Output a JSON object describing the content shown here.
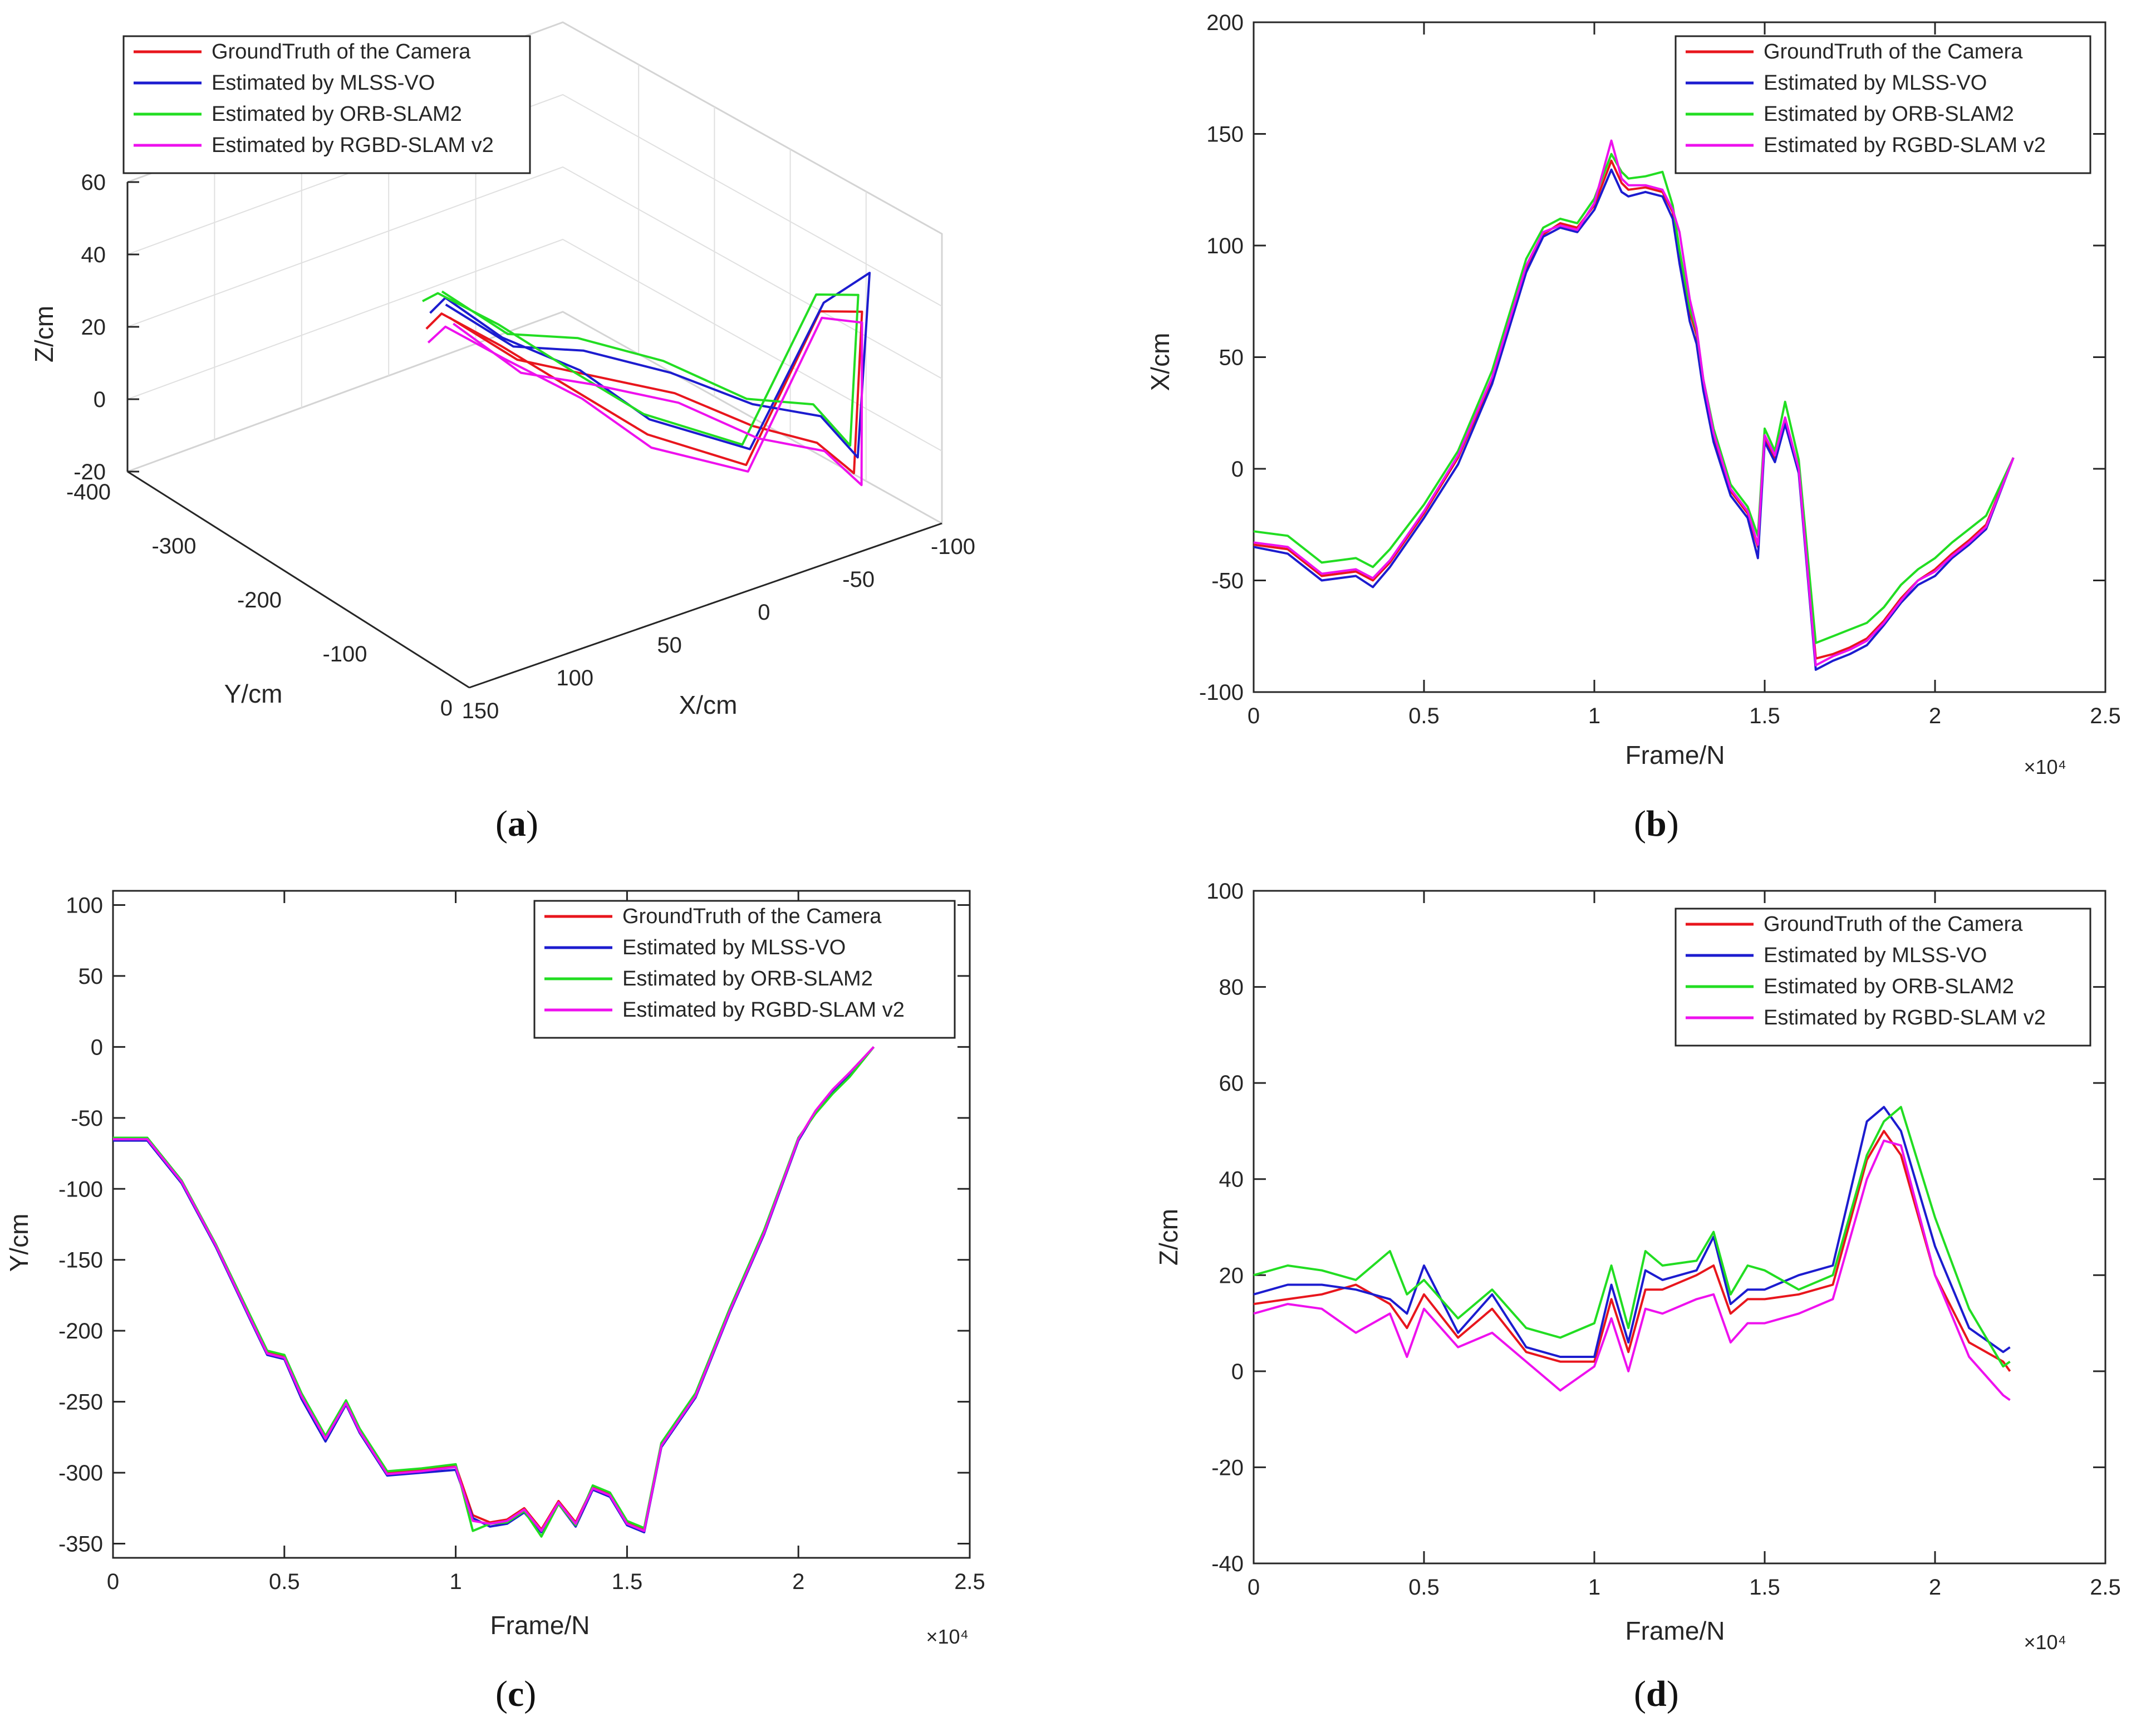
{
  "legend_labels": [
    "GroundTruth of the Camera",
    "Estimated by MLSS-VO",
    "Estimated by ORB-SLAM2",
    "Estimated by RGBD-SLAM v2"
  ],
  "series_colors": {
    "ground_truth": "#e8161d",
    "mlss_vo": "#1c1ccf",
    "orb_slam2": "#22dd22",
    "rgbd_slam_v2": "#ee11ee"
  },
  "captions": {
    "a": "a",
    "b": "b",
    "c": "c",
    "d": "d"
  },
  "chart_data": [
    {
      "panel": "a",
      "type": "line",
      "title": "",
      "projection": "3d",
      "xlabel": "X/cm",
      "ylabel": "Y/cm",
      "zlabel": "Z/cm",
      "xticks": [
        "150",
        "100",
        "50",
        "0",
        "-50",
        "-100"
      ],
      "yticks": [
        "0",
        "-100",
        "-200",
        "-300",
        "-400"
      ],
      "zticks": [
        "60",
        "40",
        "20",
        "0",
        "-20"
      ],
      "xlim": [
        -100,
        150
      ],
      "ylim": [
        -400,
        0
      ],
      "zlim": [
        -20,
        60
      ],
      "legend": {
        "location": "top-left",
        "entries": [
          "GroundTruth of the Camera",
          "Estimated by MLSS-VO",
          "Estimated by ORB-SLAM2",
          "Estimated by RGBD-SLAM v2"
        ]
      },
      "series": [
        {
          "name": "GroundTruth of the Camera",
          "points": [
            [
              0,
              -355,
              2
            ],
            [
              -20,
              -320,
              -8
            ],
            [
              -30,
              -260,
              -5
            ],
            [
              -40,
              -180,
              0
            ],
            [
              -45,
              -100,
              2
            ],
            [
              -52,
              -40,
              5
            ],
            [
              -58,
              -10,
              0
            ],
            [
              -60,
              -5,
              45
            ],
            [
              -40,
              -10,
              48
            ],
            [
              -10,
              -30,
              8
            ],
            [
              15,
              -90,
              12
            ],
            [
              20,
              -160,
              14
            ],
            [
              25,
              -240,
              16
            ],
            [
              20,
              -320,
              12
            ],
            [
              10,
              -360,
              0
            ]
          ]
        },
        {
          "name": "Estimated by MLSS-VO",
          "points": [
            [
              2,
              -355,
              6
            ],
            [
              -18,
              -320,
              -4
            ],
            [
              -28,
              -260,
              2
            ],
            [
              -38,
              -180,
              6
            ],
            [
              -45,
              -100,
              8
            ],
            [
              -54,
              -40,
              12
            ],
            [
              -60,
              -10,
              4
            ],
            [
              -64,
              -5,
              55
            ],
            [
              -42,
              -10,
              50
            ],
            [
              -12,
              -30,
              12
            ],
            [
              14,
              -90,
              16
            ],
            [
              19,
              -160,
              20
            ],
            [
              24,
              -240,
              18
            ],
            [
              18,
              -320,
              16
            ],
            [
              8,
              -360,
              4
            ]
          ]
        },
        {
          "name": "Estimated by ORB-SLAM2",
          "points": [
            [
              4,
              -355,
              10
            ],
            [
              -15,
              -320,
              0
            ],
            [
              -25,
              -260,
              6
            ],
            [
              -34,
              -180,
              10
            ],
            [
              -42,
              -100,
              10
            ],
            [
              -50,
              -40,
              16
            ],
            [
              -56,
              -10,
              8
            ],
            [
              -58,
              -5,
              50
            ],
            [
              -38,
              -10,
              53
            ],
            [
              -8,
              -30,
              14
            ],
            [
              17,
              -90,
              18
            ],
            [
              22,
              -160,
              20
            ],
            [
              26,
              -240,
              22
            ],
            [
              22,
              -320,
              18
            ],
            [
              12,
              -360,
              8
            ]
          ]
        },
        {
          "name": "Estimated by RGBD-SLAM v2",
          "points": [
            [
              -2,
              -355,
              0
            ],
            [
              -22,
              -320,
              -12
            ],
            [
              -32,
              -260,
              -8
            ],
            [
              -42,
              -180,
              -3
            ],
            [
              -48,
              -100,
              -2
            ],
            [
              -56,
              -40,
              2
            ],
            [
              -62,
              -10,
              -4
            ],
            [
              -60,
              -5,
              42
            ],
            [
              -41,
              -10,
              46
            ],
            [
              -11,
              -30,
              6
            ],
            [
              13,
              -90,
              8
            ],
            [
              18,
              -160,
              12
            ],
            [
              23,
              -240,
              12
            ],
            [
              18,
              -320,
              8
            ],
            [
              9,
              -360,
              -4
            ]
          ]
        }
      ]
    },
    {
      "panel": "b",
      "type": "line",
      "title": "",
      "xlabel": "Frame/N",
      "ylabel": "X/cm",
      "x_exponent_label": "×10⁴",
      "xlim": [
        0,
        2.5
      ],
      "ylim": [
        -100,
        200
      ],
      "xticks": [
        "0",
        "0.5",
        "1",
        "1.5",
        "2",
        "2.5"
      ],
      "yticks": [
        "-100",
        "-50",
        "0",
        "50",
        "100",
        "150",
        "200"
      ],
      "legend": {
        "location": "top-right",
        "entries": [
          "GroundTruth of the Camera",
          "Estimated by MLSS-VO",
          "Estimated by ORB-SLAM2",
          "Estimated by RGBD-SLAM v2"
        ]
      },
      "x": [
        0,
        0.1,
        0.2,
        0.3,
        0.35,
        0.4,
        0.5,
        0.6,
        0.7,
        0.8,
        0.85,
        0.9,
        0.95,
        1.0,
        1.05,
        1.08,
        1.1,
        1.15,
        1.2,
        1.23,
        1.25,
        1.28,
        1.3,
        1.32,
        1.35,
        1.4,
        1.45,
        1.48,
        1.5,
        1.53,
        1.56,
        1.6,
        1.65,
        1.7,
        1.75,
        1.8,
        1.85,
        1.9,
        1.95,
        2.0,
        2.05,
        2.1,
        2.15,
        2.23
      ],
      "series": [
        {
          "name": "GroundTruth of the Camera",
          "values": [
            -34,
            -36,
            -48,
            -46,
            -50,
            -42,
            -20,
            5,
            40,
            90,
            105,
            110,
            108,
            118,
            138,
            128,
            125,
            126,
            124,
            115,
            95,
            70,
            60,
            38,
            15,
            -10,
            -20,
            -35,
            14,
            5,
            22,
            0,
            -85,
            -83,
            -80,
            -76,
            -68,
            -58,
            -50,
            -45,
            -38,
            -32,
            -25,
            5
          ]
        },
        {
          "name": "Estimated by MLSS-VO",
          "values": [
            -35,
            -38,
            -50,
            -48,
            -53,
            -44,
            -22,
            2,
            38,
            88,
            104,
            108,
            106,
            116,
            134,
            124,
            122,
            124,
            122,
            112,
            92,
            66,
            56,
            35,
            12,
            -12,
            -22,
            -40,
            12,
            3,
            20,
            -2,
            -90,
            -86,
            -83,
            -79,
            -70,
            -60,
            -52,
            -48,
            -40,
            -34,
            -27,
            5
          ]
        },
        {
          "name": "Estimated by ORB-SLAM2",
          "values": [
            -28,
            -30,
            -42,
            -40,
            -44,
            -36,
            -16,
            8,
            44,
            94,
            108,
            112,
            110,
            121,
            141,
            133,
            130,
            131,
            133,
            118,
            98,
            72,
            62,
            40,
            18,
            -7,
            -17,
            -30,
            18,
            8,
            30,
            4,
            -78,
            -75,
            -72,
            -69,
            -62,
            -52,
            -45,
            -40,
            -33,
            -27,
            -21,
            5
          ]
        },
        {
          "name": "Estimated by RGBD-SLAM v2",
          "values": [
            -33,
            -35,
            -47,
            -45,
            -49,
            -41,
            -19,
            6,
            41,
            91,
            106,
            109,
            107,
            119,
            147,
            130,
            127,
            127,
            125,
            116,
            106,
            76,
            63,
            40,
            16,
            -9,
            -19,
            -34,
            15,
            6,
            23,
            0,
            -88,
            -84,
            -81,
            -77,
            -69,
            -59,
            -50,
            -46,
            -39,
            -33,
            -26,
            5
          ]
        }
      ]
    },
    {
      "panel": "c",
      "type": "line",
      "title": "",
      "xlabel": "Frame/N",
      "ylabel": "Y/cm",
      "x_exponent_label": "×10⁴",
      "xlim": [
        0,
        2.5
      ],
      "ylim": [
        -360,
        110
      ],
      "xticks": [
        "0",
        "0.5",
        "1",
        "1.5",
        "2",
        "2.5"
      ],
      "yticks": [
        "-350",
        "-300",
        "-250",
        "-200",
        "-150",
        "-100",
        "-50",
        "0",
        "50",
        "100"
      ],
      "legend": {
        "location": "top-right",
        "entries": [
          "GroundTruth of the Camera",
          "Estimated by MLSS-VO",
          "Estimated by ORB-SLAM2",
          "Estimated by RGBD-SLAM v2"
        ]
      },
      "x": [
        0,
        0.1,
        0.2,
        0.3,
        0.4,
        0.45,
        0.5,
        0.55,
        0.62,
        0.68,
        0.72,
        0.8,
        0.9,
        1.0,
        1.05,
        1.1,
        1.15,
        1.2,
        1.25,
        1.3,
        1.35,
        1.4,
        1.45,
        1.5,
        1.55,
        1.6,
        1.7,
        1.8,
        1.9,
        2.0,
        2.05,
        2.1,
        2.15,
        2.22
      ],
      "series": [
        {
          "name": "GroundTruth of the Camera",
          "values": [
            -65,
            -65,
            -95,
            -140,
            -190,
            -215,
            -218,
            -245,
            -275,
            -250,
            -270,
            -300,
            -298,
            -295,
            -330,
            -335,
            -333,
            -325,
            -340,
            -320,
            -335,
            -310,
            -315,
            -335,
            -340,
            -280,
            -245,
            -185,
            -130,
            -65,
            -45,
            -30,
            -18,
            0
          ]
        },
        {
          "name": "Estimated by MLSS-VO",
          "values": [
            -66,
            -66,
            -96,
            -141,
            -192,
            -217,
            -220,
            -248,
            -278,
            -252,
            -272,
            -302,
            -300,
            -298,
            -332,
            -338,
            -336,
            -328,
            -342,
            -322,
            -338,
            -312,
            -317,
            -337,
            -342,
            -282,
            -247,
            -187,
            -132,
            -66,
            -46,
            -31,
            -19,
            0
          ]
        },
        {
          "name": "Estimated by ORB-SLAM2",
          "values": [
            -64,
            -64,
            -94,
            -139,
            -189,
            -214,
            -217,
            -244,
            -274,
            -249,
            -269,
            -299,
            -297,
            -294,
            -341,
            -336,
            -335,
            -327,
            -345,
            -322,
            -337,
            -309,
            -314,
            -334,
            -339,
            -279,
            -244,
            -184,
            -129,
            -64,
            -47,
            -33,
            -21,
            0
          ]
        },
        {
          "name": "Estimated by RGBD-SLAM v2",
          "values": [
            -65,
            -65,
            -95,
            -140,
            -191,
            -216,
            -219,
            -246,
            -276,
            -251,
            -271,
            -301,
            -299,
            -296,
            -334,
            -336,
            -334,
            -326,
            -341,
            -321,
            -336,
            -311,
            -316,
            -336,
            -341,
            -281,
            -246,
            -186,
            -131,
            -65,
            -45,
            -30,
            -18,
            0
          ]
        }
      ]
    },
    {
      "panel": "d",
      "type": "line",
      "title": "",
      "xlabel": "Frame/N",
      "ylabel": "Z/cm",
      "x_exponent_label": "×10⁴",
      "xlim": [
        0,
        2.5
      ],
      "ylim": [
        -40,
        100
      ],
      "xticks": [
        "0",
        "0.5",
        "1",
        "1.5",
        "2",
        "2.5"
      ],
      "yticks": [
        "-40",
        "-20",
        "0",
        "20",
        "40",
        "60",
        "80",
        "100"
      ],
      "legend": {
        "location": "top-right",
        "entries": [
          "GroundTruth of the Camera",
          "Estimated by MLSS-VO",
          "Estimated by ORB-SLAM2",
          "Estimated by RGBD-SLAM v2"
        ]
      },
      "x": [
        0,
        0.1,
        0.2,
        0.3,
        0.4,
        0.45,
        0.5,
        0.6,
        0.7,
        0.8,
        0.9,
        1.0,
        1.05,
        1.1,
        1.15,
        1.2,
        1.3,
        1.35,
        1.4,
        1.45,
        1.5,
        1.6,
        1.7,
        1.8,
        1.85,
        1.9,
        2.0,
        2.1,
        2.2,
        2.22
      ],
      "series": [
        {
          "name": "GroundTruth of the Camera",
          "values": [
            14,
            15,
            16,
            18,
            14,
            9,
            16,
            7,
            13,
            4,
            2,
            2,
            15,
            4,
            17,
            17,
            20,
            22,
            12,
            15,
            15,
            16,
            18,
            44,
            50,
            45,
            20,
            6,
            2,
            0
          ]
        },
        {
          "name": "Estimated by MLSS-VO",
          "values": [
            16,
            18,
            18,
            17,
            15,
            12,
            22,
            8,
            16,
            5,
            3,
            3,
            18,
            6,
            21,
            19,
            21,
            28,
            14,
            17,
            17,
            20,
            22,
            52,
            55,
            50,
            26,
            9,
            4,
            5
          ]
        },
        {
          "name": "Estimated by ORB-SLAM2",
          "values": [
            20,
            22,
            21,
            19,
            25,
            16,
            19,
            11,
            17,
            9,
            7,
            10,
            22,
            9,
            25,
            22,
            23,
            29,
            16,
            22,
            21,
            17,
            20,
            45,
            52,
            55,
            32,
            13,
            1,
            2
          ]
        },
        {
          "name": "Estimated by RGBD-SLAM v2",
          "values": [
            12,
            14,
            13,
            8,
            12,
            3,
            13,
            5,
            8,
            2,
            -4,
            1,
            11,
            0,
            13,
            12,
            15,
            16,
            6,
            10,
            10,
            12,
            15,
            40,
            48,
            47,
            20,
            3,
            -5,
            -6
          ]
        }
      ]
    }
  ]
}
